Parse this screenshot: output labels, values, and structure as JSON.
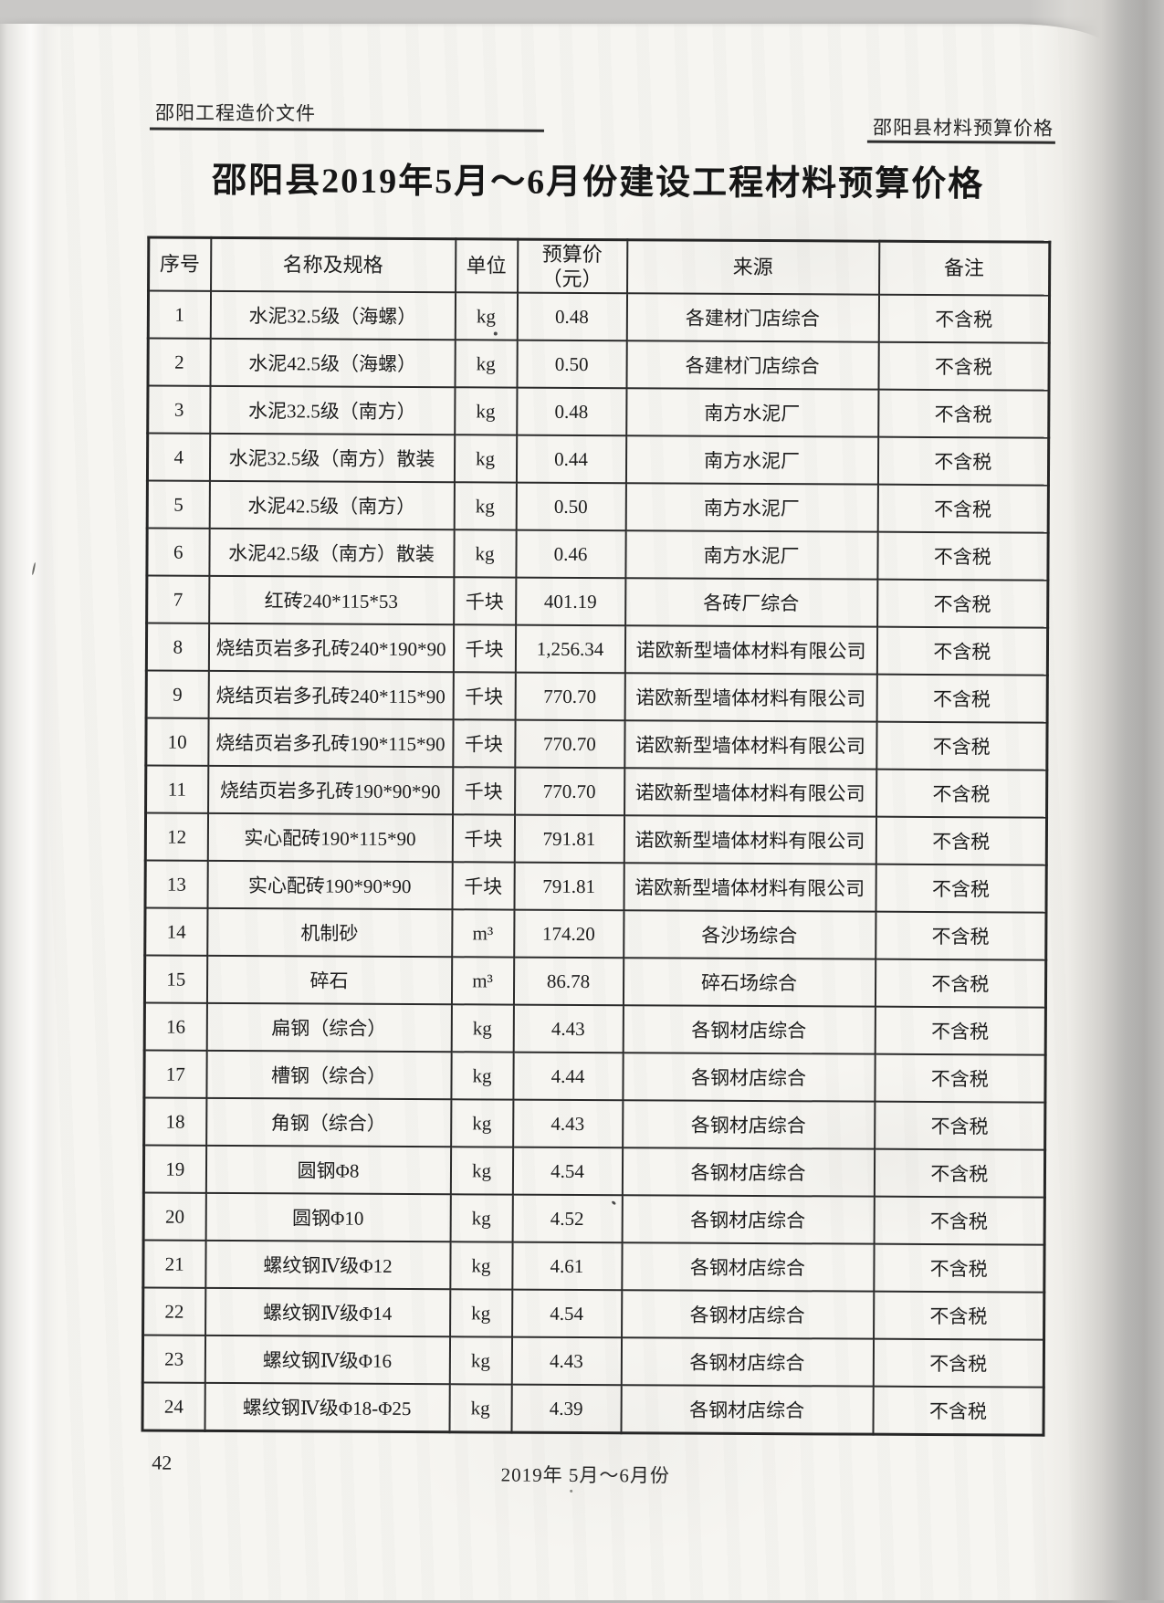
{
  "page": {
    "running_head_left": "邵阳工程造价文件",
    "running_head_right": "邵阳县材料预算价格",
    "title": "邵阳县2019年5月～6月份建设工程材料预算价格",
    "footer_page_number": "42",
    "footer_date": "2019年 5月～6月份"
  },
  "table": {
    "columns": {
      "no": "序号",
      "name": "名称及规格",
      "unit": "单位",
      "price_line1": "预算价",
      "price_line2": "（元）",
      "source": "来源",
      "remark": "备注"
    },
    "rows": [
      {
        "no": "1",
        "name": "水泥32.5级（海螺）",
        "unit": "kg",
        "price": "0.48",
        "source": "各建材门店综合",
        "remark": "不含税"
      },
      {
        "no": "2",
        "name": "水泥42.5级（海螺）",
        "unit": "kg",
        "price": "0.50",
        "source": "各建材门店综合",
        "remark": "不含税"
      },
      {
        "no": "3",
        "name": "水泥32.5级（南方）",
        "unit": "kg",
        "price": "0.48",
        "source": "南方水泥厂",
        "remark": "不含税"
      },
      {
        "no": "4",
        "name": "水泥32.5级（南方）散装",
        "unit": "kg",
        "price": "0.44",
        "source": "南方水泥厂",
        "remark": "不含税"
      },
      {
        "no": "5",
        "name": "水泥42.5级（南方）",
        "unit": "kg",
        "price": "0.50",
        "source": "南方水泥厂",
        "remark": "不含税"
      },
      {
        "no": "6",
        "name": "水泥42.5级（南方）散装",
        "unit": "kg",
        "price": "0.46",
        "source": "南方水泥厂",
        "remark": "不含税"
      },
      {
        "no": "7",
        "name": "红砖240*115*53",
        "unit": "千块",
        "price": "401.19",
        "source": "各砖厂综合",
        "remark": "不含税"
      },
      {
        "no": "8",
        "name": "烧结页岩多孔砖240*190*90",
        "unit": "千块",
        "price": "1,256.34",
        "source": "诺欧新型墙体材料有限公司",
        "remark": "不含税"
      },
      {
        "no": "9",
        "name": "烧结页岩多孔砖240*115*90",
        "unit": "千块",
        "price": "770.70",
        "source": "诺欧新型墙体材料有限公司",
        "remark": "不含税"
      },
      {
        "no": "10",
        "name": "烧结页岩多孔砖190*115*90",
        "unit": "千块",
        "price": "770.70",
        "source": "诺欧新型墙体材料有限公司",
        "remark": "不含税"
      },
      {
        "no": "11",
        "name": "烧结页岩多孔砖190*90*90",
        "unit": "千块",
        "price": "770.70",
        "source": "诺欧新型墙体材料有限公司",
        "remark": "不含税"
      },
      {
        "no": "12",
        "name": "实心配砖190*115*90",
        "unit": "千块",
        "price": "791.81",
        "source": "诺欧新型墙体材料有限公司",
        "remark": "不含税"
      },
      {
        "no": "13",
        "name": "实心配砖190*90*90",
        "unit": "千块",
        "price": "791.81",
        "source": "诺欧新型墙体材料有限公司",
        "remark": "不含税"
      },
      {
        "no": "14",
        "name": "机制砂",
        "unit": "m³",
        "price": "174.20",
        "source": "各沙场综合",
        "remark": "不含税"
      },
      {
        "no": "15",
        "name": "碎石",
        "unit": "m³",
        "price": "86.78",
        "source": "碎石场综合",
        "remark": "不含税"
      },
      {
        "no": "16",
        "name": "扁钢（综合）",
        "unit": "kg",
        "price": "4.43",
        "source": "各钢材店综合",
        "remark": "不含税"
      },
      {
        "no": "17",
        "name": "槽钢（综合）",
        "unit": "kg",
        "price": "4.44",
        "source": "各钢材店综合",
        "remark": "不含税"
      },
      {
        "no": "18",
        "name": "角钢（综合）",
        "unit": "kg",
        "price": "4.43",
        "source": "各钢材店综合",
        "remark": "不含税"
      },
      {
        "no": "19",
        "name": "圆钢Φ8",
        "unit": "kg",
        "price": "4.54",
        "source": "各钢材店综合",
        "remark": "不含税"
      },
      {
        "no": "20",
        "name": "圆钢Φ10",
        "unit": "kg",
        "price": "4.52",
        "source": "各钢材店综合",
        "remark": "不含税"
      },
      {
        "no": "21",
        "name": "螺纹钢Ⅳ级Φ12",
        "unit": "kg",
        "price": "4.61",
        "source": "各钢材店综合",
        "remark": "不含税"
      },
      {
        "no": "22",
        "name": "螺纹钢Ⅳ级Φ14",
        "unit": "kg",
        "price": "4.54",
        "source": "各钢材店综合",
        "remark": "不含税"
      },
      {
        "no": "23",
        "name": "螺纹钢Ⅳ级Φ16",
        "unit": "kg",
        "price": "4.43",
        "source": "各钢材店综合",
        "remark": "不含税"
      },
      {
        "no": "24",
        "name": "螺纹钢Ⅳ级Φ18-Φ25",
        "unit": "kg",
        "price": "4.39",
        "source": "各钢材店综合",
        "remark": "不含税"
      }
    ]
  }
}
